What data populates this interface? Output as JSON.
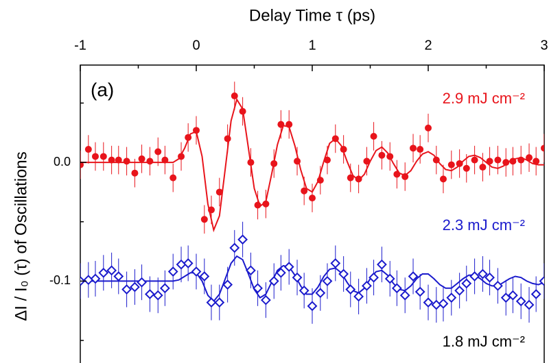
{
  "chart_data": {
    "type": "scatter",
    "xlabel": "Delay Time τ (ps)",
    "ylabel": "ΔI / I₀ (τ) of Oscillations",
    "xlim": [
      -1,
      3
    ],
    "xticks": [
      -1,
      0,
      1,
      2,
      3
    ],
    "xminorticks": [
      -0.5,
      0.5,
      1.5,
      2.5
    ],
    "ylim": [
      -0.169,
      0.082
    ],
    "yticks": [
      {
        "value": 0,
        "label": "0.0"
      },
      {
        "value": -0.1,
        "label": "-0.1"
      }
    ],
    "yminorticks": [
      0.05,
      -0.05,
      -0.15
    ],
    "annotations": [
      {
        "text": "(a)",
        "color": "#000000"
      },
      {
        "text": "1.8 mJ cm⁻²",
        "color": "#000000"
      }
    ],
    "series": [
      {
        "name": "2.9 mJ cm⁻²",
        "color": "#e8141b",
        "marker": "circle",
        "error": 0.012,
        "x": [
          -1.0,
          -0.93,
          -0.87,
          -0.8,
          -0.73,
          -0.67,
          -0.6,
          -0.53,
          -0.47,
          -0.4,
          -0.33,
          -0.27,
          -0.2,
          -0.13,
          -0.07,
          0.0,
          0.07,
          0.13,
          0.2,
          0.27,
          0.33,
          0.4,
          0.47,
          0.53,
          0.6,
          0.67,
          0.73,
          0.8,
          0.87,
          0.93,
          1.0,
          1.07,
          1.13,
          1.2,
          1.27,
          1.33,
          1.4,
          1.47,
          1.53,
          1.6,
          1.67,
          1.73,
          1.8,
          1.87,
          1.93,
          2.0,
          2.07,
          2.13,
          2.2,
          2.27,
          2.33,
          2.4,
          2.47,
          2.53,
          2.6,
          2.67,
          2.73,
          2.8,
          2.87,
          2.93,
          3.0
        ],
        "values": [
          -0.002,
          0.011,
          0.005,
          0.005,
          0.002,
          0.002,
          0.001,
          -0.009,
          0.003,
          0.001,
          0.009,
          0.002,
          -0.013,
          0.005,
          0.021,
          0.027,
          -0.048,
          -0.04,
          -0.025,
          0.02,
          0.056,
          0.043,
          0.0,
          -0.036,
          -0.035,
          -0.001,
          0.032,
          0.032,
          0.001,
          -0.024,
          -0.03,
          -0.015,
          0.002,
          0.02,
          0.011,
          -0.013,
          -0.014,
          0.001,
          0.022,
          0.006,
          0.005,
          -0.01,
          -0.012,
          0.012,
          0.011,
          0.029,
          0.002,
          -0.014,
          -0.002,
          -0.001,
          -0.005,
          0.002,
          -0.004,
          0.001,
          0.002,
          0.0,
          0.001,
          0.002,
          0.004,
          0.001,
          0.012
        ]
      },
      {
        "name": "2.3 mJ cm⁻²",
        "color": "#1a1acc",
        "marker": "diamond",
        "error": 0.015,
        "x": [
          -1.0,
          -0.93,
          -0.87,
          -0.8,
          -0.73,
          -0.67,
          -0.6,
          -0.53,
          -0.47,
          -0.4,
          -0.33,
          -0.27,
          -0.2,
          -0.13,
          -0.07,
          0.0,
          0.07,
          0.13,
          0.2,
          0.27,
          0.33,
          0.4,
          0.47,
          0.53,
          0.6,
          0.67,
          0.73,
          0.8,
          0.87,
          0.93,
          1.0,
          1.07,
          1.13,
          1.2,
          1.27,
          1.33,
          1.4,
          1.47,
          1.53,
          1.6,
          1.67,
          1.73,
          1.8,
          1.87,
          1.93,
          2.0,
          2.07,
          2.13,
          2.2,
          2.27,
          2.33,
          2.4,
          2.47,
          2.53,
          2.6,
          2.67,
          2.73,
          2.8,
          2.87,
          2.93,
          3.0
        ],
        "values": [
          -0.1,
          -0.099,
          -0.098,
          -0.093,
          -0.091,
          -0.096,
          -0.107,
          -0.105,
          -0.101,
          -0.111,
          -0.112,
          -0.106,
          -0.092,
          -0.086,
          -0.085,
          -0.092,
          -0.096,
          -0.118,
          -0.118,
          -0.103,
          -0.072,
          -0.065,
          -0.091,
          -0.106,
          -0.116,
          -0.1,
          -0.093,
          -0.088,
          -0.097,
          -0.108,
          -0.121,
          -0.11,
          -0.1,
          -0.085,
          -0.094,
          -0.107,
          -0.113,
          -0.104,
          -0.097,
          -0.086,
          -0.098,
          -0.106,
          -0.112,
          -0.096,
          -0.109,
          -0.118,
          -0.12,
          -0.119,
          -0.114,
          -0.108,
          -0.102,
          -0.096,
          -0.094,
          -0.097,
          -0.104,
          -0.114,
          -0.112,
          -0.117,
          -0.12,
          -0.111,
          -0.1
        ]
      }
    ],
    "fit_x": [
      -1.0,
      -0.95,
      -0.9,
      -0.85,
      -0.8,
      -0.75,
      -0.7,
      -0.65,
      -0.6,
      -0.55,
      -0.5,
      -0.45,
      -0.4,
      -0.35,
      -0.3,
      -0.25,
      -0.2,
      -0.15,
      -0.1,
      -0.05,
      0.0,
      0.05,
      0.1,
      0.15,
      0.2,
      0.25,
      0.3,
      0.35,
      0.4,
      0.45,
      0.5,
      0.55,
      0.6,
      0.65,
      0.7,
      0.75,
      0.8,
      0.85,
      0.9,
      0.95,
      1.0,
      1.05,
      1.1,
      1.15,
      1.2,
      1.25,
      1.3,
      1.35,
      1.4,
      1.45,
      1.5,
      1.55,
      1.6,
      1.65,
      1.7,
      1.75,
      1.8,
      1.85,
      1.9,
      1.95,
      2.0,
      2.05,
      2.1,
      2.15,
      2.2,
      2.25,
      2.3,
      2.35,
      2.4,
      2.45,
      2.5,
      2.55,
      2.6,
      2.65,
      2.7,
      2.75,
      2.8,
      2.85,
      2.9,
      2.95,
      3.0
    ],
    "fits": [
      {
        "color": "#e8141b",
        "values": [
          0,
          0,
          0,
          0,
          0,
          0,
          0,
          0,
          0,
          0,
          0,
          0,
          0,
          0,
          0,
          0,
          0,
          0.003,
          0.012,
          0.024,
          0.026,
          0.005,
          -0.035,
          -0.057,
          -0.045,
          -0.005,
          0.035,
          0.053,
          0.045,
          0.012,
          -0.022,
          -0.037,
          -0.033,
          -0.01,
          0.015,
          0.031,
          0.03,
          0.014,
          -0.006,
          -0.022,
          -0.025,
          -0.016,
          0.001,
          0.016,
          0.02,
          0.014,
          0.001,
          -0.011,
          -0.015,
          -0.01,
          0.001,
          0.01,
          0.013,
          0.008,
          -0.001,
          -0.009,
          -0.011,
          -0.007,
          0.001,
          0.007,
          0.009,
          0.006,
          -0.001,
          -0.006,
          -0.007,
          -0.004,
          0.001,
          0.005,
          0.006,
          0.004,
          0.0,
          -0.004,
          -0.005,
          -0.003,
          0.001,
          0.003,
          0.004,
          0.002,
          -0.001,
          -0.002,
          -0.002
        ]
      },
      {
        "color": "#1a1acc",
        "values": [
          -0.1,
          -0.1,
          -0.1,
          -0.1,
          -0.1,
          -0.1,
          -0.1,
          -0.1,
          -0.1,
          -0.1,
          -0.1,
          -0.1,
          -0.1,
          -0.1,
          -0.1,
          -0.1,
          -0.1,
          -0.099,
          -0.096,
          -0.093,
          -0.093,
          -0.1,
          -0.112,
          -0.117,
          -0.111,
          -0.098,
          -0.085,
          -0.079,
          -0.082,
          -0.094,
          -0.107,
          -0.114,
          -0.111,
          -0.101,
          -0.091,
          -0.087,
          -0.088,
          -0.095,
          -0.104,
          -0.111,
          -0.111,
          -0.105,
          -0.096,
          -0.09,
          -0.089,
          -0.093,
          -0.101,
          -0.108,
          -0.11,
          -0.106,
          -0.098,
          -0.092,
          -0.091,
          -0.095,
          -0.102,
          -0.107,
          -0.108,
          -0.104,
          -0.098,
          -0.094,
          -0.094,
          -0.098,
          -0.103,
          -0.106,
          -0.106,
          -0.102,
          -0.098,
          -0.095,
          -0.095,
          -0.098,
          -0.102,
          -0.104,
          -0.104,
          -0.101,
          -0.098,
          -0.096,
          -0.097,
          -0.1,
          -0.102,
          -0.103,
          -0.101
        ]
      }
    ]
  }
}
